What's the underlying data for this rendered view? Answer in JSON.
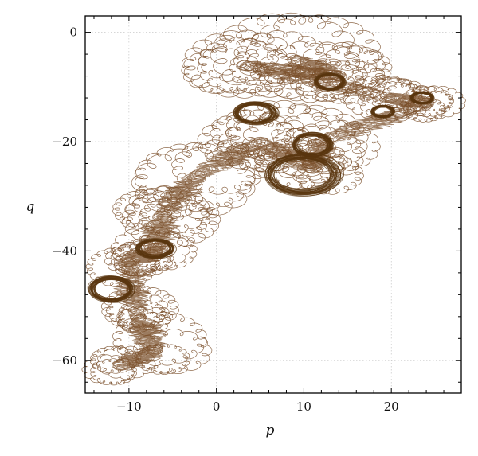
{
  "chart_data": {
    "type": "line",
    "title": "",
    "xlabel": "p",
    "ylabel": "q",
    "xlim": [
      -15,
      28
    ],
    "ylim": [
      -66,
      3
    ],
    "x_ticks": [
      -10,
      0,
      10,
      20
    ],
    "y_ticks": [
      0,
      -20,
      -40,
      -60
    ],
    "x_tick_labels": [
      "−10",
      "0",
      "10",
      "20"
    ],
    "y_tick_labels": [
      "0",
      "−20",
      "−40",
      "−60"
    ],
    "grid": true,
    "legend": "none",
    "line_color": "#7a4f2a",
    "ring_color": "#5a360f",
    "series": [
      {
        "description_points": "approximate centers and radii of the epicyclic loop clusters forming the trajectory, in data units",
        "clusters": [
          {
            "p": 9,
            "q": -5,
            "r": 7
          },
          {
            "p": 14,
            "q": -8,
            "r": 5
          },
          {
            "p": 3,
            "q": -6,
            "r": 6
          },
          {
            "p": 20,
            "q": -12,
            "r": 4
          },
          {
            "p": 24,
            "q": -13,
            "r": 3
          },
          {
            "p": 12,
            "q": -20,
            "r": 6
          },
          {
            "p": 11,
            "q": -25,
            "r": 5
          },
          {
            "p": 5,
            "q": -20,
            "r": 6
          },
          {
            "p": -2,
            "q": -26,
            "r": 6
          },
          {
            "p": -6,
            "q": -33,
            "r": 5
          },
          {
            "p": -7,
            "q": -40,
            "r": 4
          },
          {
            "p": -10,
            "q": -42,
            "r": 4
          },
          {
            "p": -9,
            "q": -52,
            "r": 4
          },
          {
            "p": -7,
            "q": -58,
            "r": 5
          },
          {
            "p": -11,
            "q": -61,
            "r": 4
          }
        ]
      }
    ],
    "dense_rings": [
      {
        "p": 4.5,
        "q": -14.8,
        "rx": 2.2,
        "ry": 1.8
      },
      {
        "p": 11,
        "q": -20.5,
        "rx": 2.0,
        "ry": 1.9
      },
      {
        "p": -12,
        "q": -47,
        "rx": 2.3,
        "ry": 2.1
      },
      {
        "p": -7,
        "q": -39.5,
        "rx": 2.0,
        "ry": 1.6
      },
      {
        "p": 19,
        "q": -14.5,
        "rx": 1.2,
        "ry": 1.0
      },
      {
        "p": 23.5,
        "q": -12,
        "rx": 1.2,
        "ry": 1.0
      },
      {
        "p": 13,
        "q": -9,
        "rx": 1.6,
        "ry": 1.4
      },
      {
        "p": 10,
        "q": -26,
        "rx": 4.0,
        "ry": 3.5
      }
    ]
  }
}
